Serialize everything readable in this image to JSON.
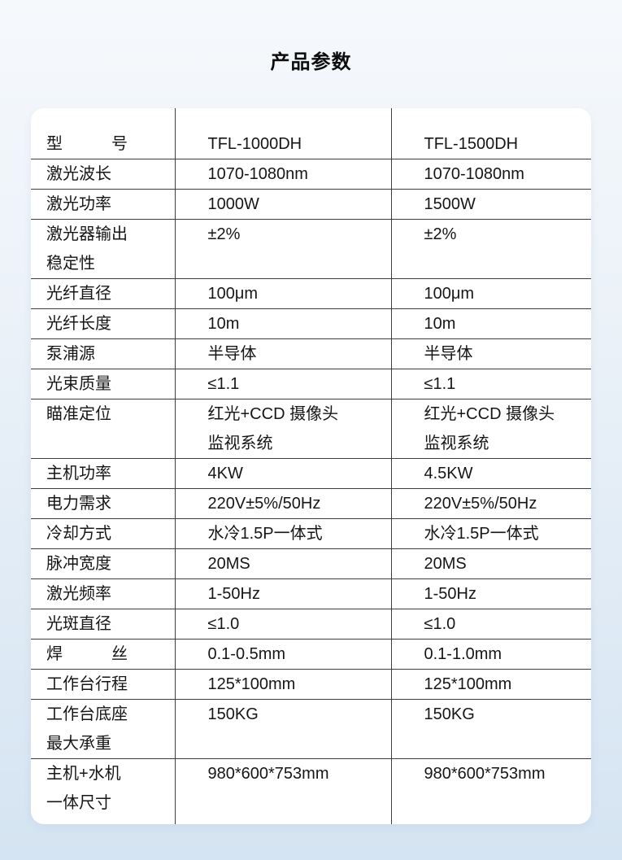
{
  "page": {
    "title": "产品参数"
  },
  "table": {
    "header": {
      "label": "型　　　号",
      "col1": "TFL-1000DH",
      "col2": "TFL-1500DH"
    },
    "rows": [
      {
        "label": "激光波长",
        "col1": "1070-1080nm",
        "col2": "1070-1080nm"
      },
      {
        "label": "激光功率",
        "col1": "1000W",
        "col2": "1500W"
      },
      {
        "label": "激光器输出\n稳定性",
        "col1": "±2%",
        "col2": "±2%"
      },
      {
        "label": "光纤直径",
        "col1": "100μm",
        "col2": "100μm"
      },
      {
        "label": "光纤长度",
        "col1": "10m",
        "col2": "10m"
      },
      {
        "label": "泵浦源",
        "col1": "半导体",
        "col2": "半导体"
      },
      {
        "label": "光束质量",
        "col1": "≤1.1",
        "col2": "≤1.1"
      },
      {
        "label": "瞄准定位",
        "col1": "红光+CCD 摄像头\n监视系统",
        "col2": "红光+CCD 摄像头\n监视系统"
      },
      {
        "label": "主机功率",
        "col1": "4KW",
        "col2": "4.5KW"
      },
      {
        "label": "电力需求",
        "col1": "220V±5%/50Hz",
        "col2": "220V±5%/50Hz"
      },
      {
        "label": "冷却方式",
        "col1": "水冷1.5P一体式",
        "col2": "水冷1.5P一体式"
      },
      {
        "label": "脉冲宽度",
        "col1": "20MS",
        "col2": "20MS"
      },
      {
        "label": "激光频率",
        "col1": "1-50Hz",
        "col2": "1-50Hz"
      },
      {
        "label": "光斑直径",
        "col1": "≤1.0",
        "col2": "≤1.0"
      },
      {
        "label": "焊　　　丝",
        "col1": "0.1-0.5mm",
        "col2": "0.1-1.0mm"
      },
      {
        "label": "工作台行程",
        "col1": "125*100mm",
        "col2": "125*100mm"
      },
      {
        "label": "工作台底座\n最大承重",
        "col1": "150KG",
        "col2": "150KG"
      },
      {
        "label": "主机+水机\n一体尺寸",
        "col1": "980*600*753mm",
        "col2": "980*600*753mm"
      }
    ]
  },
  "colors": {
    "background_top": "#f6f9fc",
    "background_bottom": "#d5e4f2",
    "card": "#ffffff",
    "grid_line": "#3e3e3e",
    "text": "#161616"
  }
}
